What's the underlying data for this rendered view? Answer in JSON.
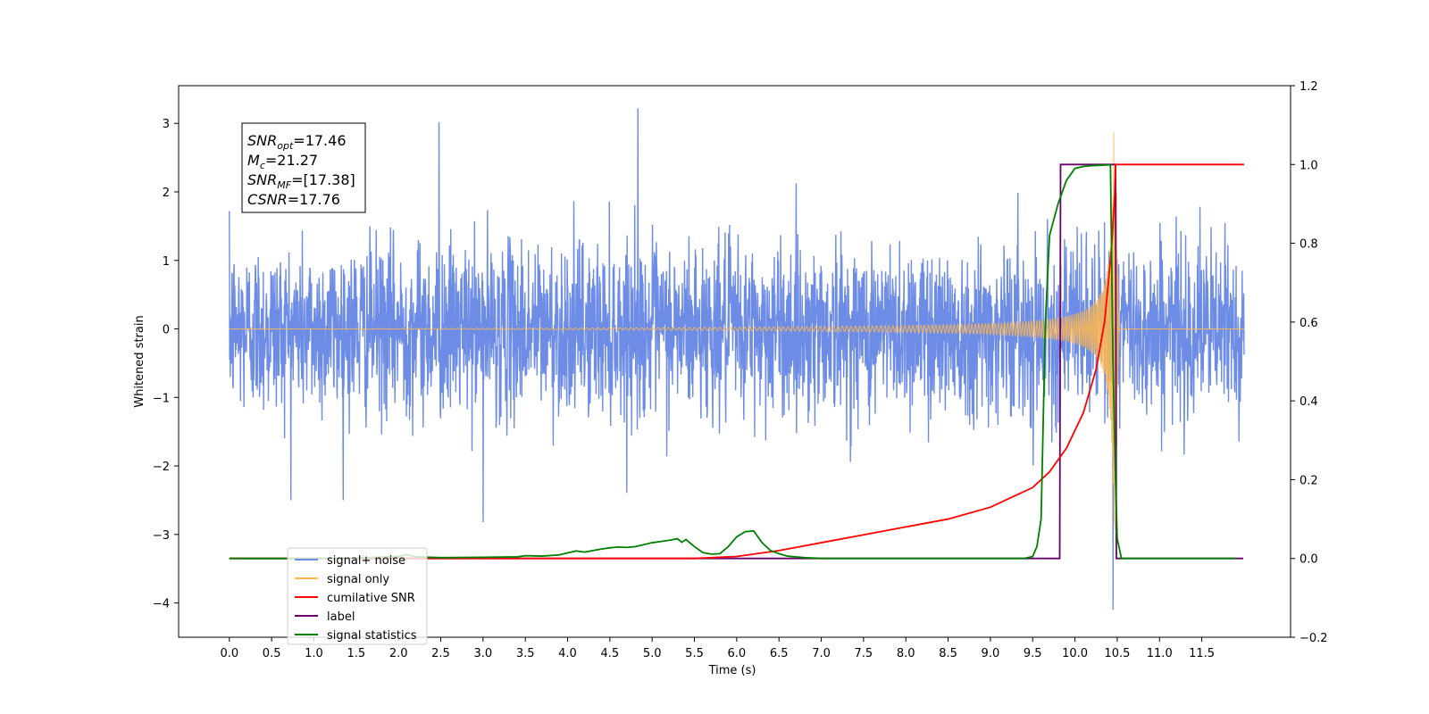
{
  "chart_data": {
    "type": "line",
    "xlabel": "Time (s)",
    "ylabel": "Whitened strain",
    "xlim": [
      -0.6,
      12.55
    ],
    "ylim": [
      -4.5,
      3.55
    ],
    "y2lim": [
      -0.2,
      1.2
    ],
    "x_ticks": [
      0.0,
      0.5,
      1.0,
      1.5,
      2.0,
      2.5,
      3.0,
      3.5,
      4.0,
      4.5,
      5.0,
      5.5,
      6.0,
      6.5,
      7.0,
      7.5,
      8.0,
      8.5,
      9.0,
      9.5,
      10.0,
      10.5,
      11.0,
      11.5
    ],
    "x_tick_labels": [
      "0.0",
      "0.5",
      "1.0",
      "1.5",
      "2.0",
      "2.5",
      "3.0",
      "3.5",
      "4.0",
      "4.5",
      "5.0",
      "5.5",
      "6.0",
      "6.5",
      "7.0",
      "7.5",
      "8.0",
      "8.5",
      "9.0",
      "9.5",
      "10.0",
      "10.5",
      "11.0",
      "11.5"
    ],
    "y_ticks": [
      -4,
      -3,
      -2,
      -1,
      0,
      1,
      2,
      3
    ],
    "y_tick_labels": [
      "−4",
      "−3",
      "−2",
      "−1",
      "0",
      "1",
      "2",
      "3"
    ],
    "y2_ticks": [
      -0.2,
      0.0,
      0.2,
      0.4,
      0.6,
      0.8,
      1.0,
      1.2
    ],
    "y2_tick_labels": [
      "−0.2",
      "0.0",
      "0.2",
      "0.4",
      "0.6",
      "0.8",
      "1.0",
      "1.2"
    ],
    "grid": false,
    "legend_position": "lower-left",
    "annotation": {
      "lines": [
        {
          "name": "SNR",
          "sub": "opt",
          "value": "=17.46"
        },
        {
          "name": "M",
          "sub": "c",
          "value": "=21.27"
        },
        {
          "name": "SNR",
          "sub": "MF",
          "value": "=[17.38]"
        },
        {
          "name": "CSNR",
          "sub": "",
          "value": "=17.76"
        }
      ]
    },
    "series": [
      {
        "name": "signal+ noise",
        "axis": "left",
        "color": "#6d8ce6",
        "description_values": {
          "x_range": [
            0.0,
            12.0
          ],
          "typical_abs_max": 1.9,
          "extremes": [
            [
              4.83,
              3.22
            ],
            [
              2.48,
              3.02
            ],
            [
              10.45,
              -4.1
            ],
            [
              3.0,
              -2.82
            ]
          ]
        }
      },
      {
        "name": "signal only",
        "axis": "left",
        "color": "#ffb74d",
        "description_values": {
          "merger_time": 10.48,
          "peak_amplitude": 2.93,
          "amp_at_9_5": 0.2,
          "amp_at_8_0": 0.06
        }
      },
      {
        "name": "cumilative SNR",
        "axis": "right",
        "color": "#ff0000",
        "x": [
          0.0,
          5.5,
          6.0,
          6.5,
          7.0,
          7.5,
          8.0,
          8.5,
          9.0,
          9.3,
          9.5,
          9.7,
          9.9,
          10.1,
          10.25,
          10.35,
          10.43,
          10.47,
          10.48,
          12.0
        ],
        "y": [
          0.0,
          0.0,
          0.005,
          0.02,
          0.04,
          0.06,
          0.08,
          0.1,
          0.13,
          0.16,
          0.18,
          0.22,
          0.28,
          0.37,
          0.48,
          0.6,
          0.78,
          0.92,
          1.0,
          1.0
        ]
      },
      {
        "name": "label",
        "axis": "right",
        "color": "#6a006a",
        "x": [
          0.0,
          9.82,
          9.83,
          10.48,
          10.49,
          11.99
        ],
        "y": [
          0.0,
          0.0,
          1.0,
          1.0,
          0.0,
          0.0
        ]
      },
      {
        "name": "signal statistics",
        "axis": "right",
        "color": "#008000",
        "x": [
          0.0,
          1.0,
          1.5,
          2.0,
          2.1,
          2.2,
          2.5,
          3.0,
          3.4,
          3.5,
          3.7,
          3.9,
          4.0,
          4.1,
          4.2,
          4.3,
          4.4,
          4.5,
          4.6,
          4.7,
          4.8,
          4.9,
          5.0,
          5.1,
          5.2,
          5.3,
          5.35,
          5.4,
          5.5,
          5.6,
          5.7,
          5.8,
          5.9,
          6.0,
          6.1,
          6.2,
          6.3,
          6.4,
          6.5,
          6.6,
          6.8,
          7.0,
          9.4,
          9.5,
          9.55,
          9.6,
          9.65,
          9.7,
          9.8,
          9.9,
          10.0,
          10.1,
          10.2,
          10.3,
          10.4,
          10.42,
          10.45,
          10.48,
          10.5,
          10.55,
          11.9
        ],
        "y": [
          0.0,
          0.0,
          0.001,
          0.005,
          0.01,
          0.004,
          0.002,
          0.003,
          0.004,
          0.007,
          0.006,
          0.009,
          0.014,
          0.019,
          0.016,
          0.02,
          0.024,
          0.027,
          0.029,
          0.028,
          0.03,
          0.035,
          0.04,
          0.043,
          0.046,
          0.05,
          0.041,
          0.048,
          0.03,
          0.015,
          0.011,
          0.012,
          0.03,
          0.055,
          0.068,
          0.07,
          0.04,
          0.02,
          0.012,
          0.006,
          0.002,
          0.0,
          0.0,
          0.005,
          0.03,
          0.1,
          0.6,
          0.82,
          0.9,
          0.96,
          0.99,
          0.995,
          0.997,
          0.998,
          0.999,
          0.999,
          0.5,
          0.2,
          0.05,
          0.0,
          0.0
        ]
      }
    ],
    "legend": {
      "entries": [
        {
          "label": "signal+ noise",
          "color": "#6d8ce6"
        },
        {
          "label": "signal only",
          "color": "#ffb74d"
        },
        {
          "label": "cumilative SNR",
          "color": "#ff0000"
        },
        {
          "label": "label",
          "color": "#6a006a"
        },
        {
          "label": "signal statistics",
          "color": "#008000"
        }
      ]
    }
  }
}
